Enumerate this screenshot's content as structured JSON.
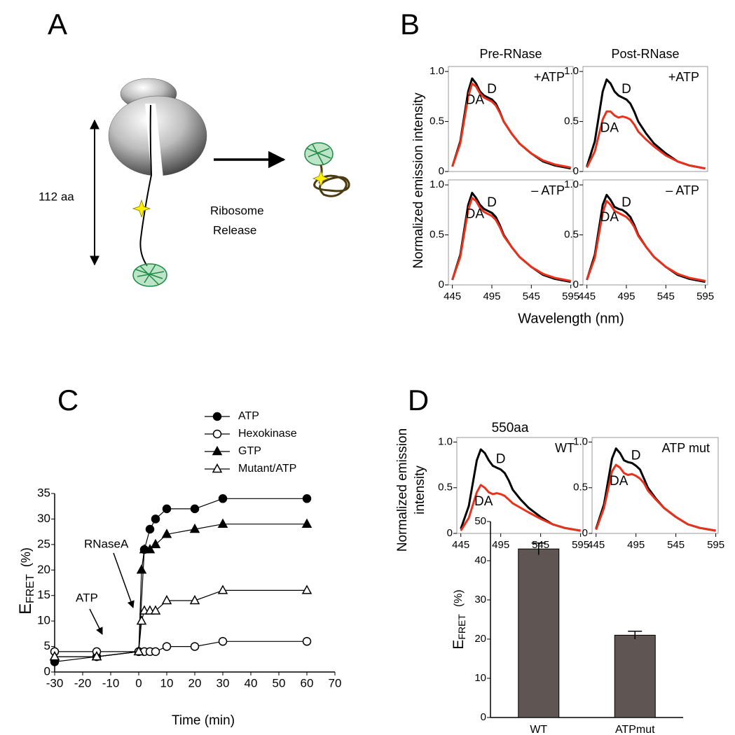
{
  "figure": {
    "panel_labels": [
      "A",
      "B",
      "C",
      "D"
    ],
    "b_y_label": "Normalized emission intensity",
    "b_x_label": "Wavelength (nm)",
    "d_title": "550aa",
    "d_y_label": [
      "Normalized emission",
      "intensity"
    ]
  },
  "diagram": {
    "length_label": "112 aa",
    "arrow_label": [
      "Ribosome",
      "Release"
    ]
  },
  "chart_data": [
    {
      "type": "line",
      "title": "Pre-RNase",
      "condition": "+ATP",
      "x": [
        445,
        455,
        465,
        470,
        475,
        480,
        485,
        490,
        495,
        500,
        505,
        510,
        520,
        530,
        545,
        560,
        575,
        595
      ],
      "series": [
        {
          "name": "D",
          "color": "#000000",
          "values": [
            0.05,
            0.3,
            0.8,
            0.93,
            0.88,
            0.8,
            0.76,
            0.74,
            0.72,
            0.68,
            0.6,
            0.5,
            0.38,
            0.28,
            0.18,
            0.1,
            0.06,
            0.03
          ]
        },
        {
          "name": "DA",
          "color": "#e8321c",
          "values": [
            0.05,
            0.28,
            0.75,
            0.88,
            0.85,
            0.78,
            0.74,
            0.72,
            0.7,
            0.66,
            0.59,
            0.5,
            0.38,
            0.28,
            0.18,
            0.11,
            0.07,
            0.04
          ]
        }
      ],
      "xlim": [
        440,
        598
      ],
      "ylim": [
        0,
        1.05
      ],
      "yticks": [
        0,
        0.5,
        {
          "value": 1,
          "label": "1.0"
        }
      ]
    },
    {
      "type": "line",
      "title": "Post-RNase",
      "condition": "+ATP",
      "x": [
        445,
        455,
        465,
        470,
        475,
        480,
        485,
        490,
        495,
        500,
        505,
        510,
        520,
        530,
        545,
        560,
        575,
        595
      ],
      "series": [
        {
          "name": "D",
          "color": "#000000",
          "values": [
            0.05,
            0.3,
            0.8,
            0.92,
            0.88,
            0.8,
            0.76,
            0.74,
            0.72,
            0.68,
            0.6,
            0.5,
            0.38,
            0.28,
            0.18,
            0.1,
            0.06,
            0.03
          ]
        },
        {
          "name": "DA",
          "color": "#e8321c",
          "values": [
            0.04,
            0.2,
            0.52,
            0.6,
            0.6,
            0.56,
            0.54,
            0.55,
            0.54,
            0.52,
            0.47,
            0.4,
            0.32,
            0.25,
            0.16,
            0.1,
            0.06,
            0.03
          ]
        }
      ],
      "xlim": [
        440,
        598
      ],
      "ylim": [
        0,
        1.05
      ],
      "yticks": [
        0,
        0.5,
        {
          "value": 1,
          "label": "1.0"
        }
      ]
    },
    {
      "type": "line",
      "condition": "– ATP",
      "x": [
        445,
        455,
        465,
        470,
        475,
        480,
        485,
        490,
        495,
        500,
        505,
        510,
        520,
        530,
        545,
        560,
        575,
        595
      ],
      "series": [
        {
          "name": "D",
          "color": "#000000",
          "values": [
            0.05,
            0.3,
            0.8,
            0.92,
            0.87,
            0.8,
            0.76,
            0.74,
            0.72,
            0.68,
            0.6,
            0.5,
            0.38,
            0.28,
            0.18,
            0.1,
            0.06,
            0.03
          ]
        },
        {
          "name": "DA",
          "color": "#e8321c",
          "values": [
            0.05,
            0.28,
            0.75,
            0.87,
            0.84,
            0.77,
            0.73,
            0.71,
            0.69,
            0.65,
            0.58,
            0.49,
            0.38,
            0.28,
            0.18,
            0.11,
            0.07,
            0.04
          ]
        }
      ],
      "xlim": [
        440,
        598
      ],
      "ylim": [
        0,
        1.05
      ],
      "xticks": [
        445,
        495,
        545,
        595
      ],
      "yticks": [
        0,
        0.5,
        {
          "value": 1,
          "label": "1.0"
        }
      ]
    },
    {
      "type": "line",
      "condition": "– ATP",
      "x": [
        445,
        455,
        465,
        470,
        475,
        480,
        485,
        490,
        495,
        500,
        505,
        510,
        520,
        530,
        545,
        560,
        575,
        595
      ],
      "series": [
        {
          "name": "D",
          "color": "#000000",
          "values": [
            0.05,
            0.3,
            0.8,
            0.9,
            0.85,
            0.78,
            0.76,
            0.75,
            0.72,
            0.68,
            0.6,
            0.5,
            0.38,
            0.28,
            0.18,
            0.1,
            0.06,
            0.03
          ]
        },
        {
          "name": "DA",
          "color": "#e8321c",
          "values": [
            0.05,
            0.27,
            0.72,
            0.84,
            0.8,
            0.74,
            0.72,
            0.7,
            0.68,
            0.64,
            0.58,
            0.49,
            0.38,
            0.28,
            0.18,
            0.11,
            0.07,
            0.04
          ]
        }
      ],
      "xlim": [
        440,
        598
      ],
      "ylim": [
        0,
        1.05
      ],
      "xticks": [
        445,
        495,
        545,
        595
      ],
      "yticks": [
        0,
        0.5,
        {
          "value": 1,
          "label": "1.0"
        }
      ]
    },
    {
      "type": "line",
      "x_label": "Time (min)",
      "y_label": "E",
      "y_label_sub": "FRET",
      "y_label_unit": "(%)",
      "annotations": [
        "RNaseA",
        "ATP"
      ],
      "series": [
        {
          "name": "ATP",
          "color": "#000000",
          "marker": "circle",
          "marker_fill": "filled",
          "x": [
            -30,
            -15,
            0,
            2,
            4,
            6,
            10,
            20,
            30,
            60
          ],
          "values": [
            2,
            3,
            4,
            24,
            28,
            30,
            32,
            32,
            34,
            34
          ]
        },
        {
          "name": "Hexokinase",
          "color": "#000000",
          "marker": "circle",
          "marker_fill": "open",
          "x": [
            -30,
            -15,
            0,
            2,
            4,
            6,
            10,
            20,
            30,
            60
          ],
          "values": [
            4,
            4,
            4,
            4,
            4,
            4,
            5,
            5,
            6,
            6
          ]
        },
        {
          "name": "GTP",
          "color": "#000000",
          "marker": "triangle",
          "marker_fill": "filled",
          "x": [
            -30,
            -15,
            0,
            1,
            2,
            4,
            6,
            10,
            20,
            30,
            60
          ],
          "values": [
            3,
            3,
            4,
            20,
            24,
            24,
            25,
            27,
            28,
            29,
            29
          ]
        },
        {
          "name": "Mutant/ATP",
          "color": "#000000",
          "marker": "triangle",
          "marker_fill": "open",
          "x": [
            -30,
            -15,
            0,
            1,
            2,
            4,
            6,
            10,
            20,
            30,
            60
          ],
          "values": [
            3,
            3,
            4,
            10,
            12,
            12,
            12,
            14,
            14,
            16,
            16
          ]
        }
      ],
      "xlim": [
        -30,
        70
      ],
      "xticks": [
        -30,
        -20,
        -10,
        0,
        10,
        20,
        30,
        40,
        50,
        60,
        70
      ],
      "ylim": [
        0,
        35
      ],
      "yticks": [
        0,
        5,
        10,
        15,
        20,
        25,
        30,
        35
      ]
    },
    {
      "type": "line",
      "condition": "WT",
      "x": [
        445,
        455,
        465,
        470,
        475,
        480,
        485,
        490,
        495,
        500,
        505,
        510,
        520,
        530,
        545,
        560,
        575,
        595
      ],
      "series": [
        {
          "name": "D",
          "color": "#000000",
          "values": [
            0.05,
            0.3,
            0.8,
            0.92,
            0.88,
            0.8,
            0.74,
            0.72,
            0.7,
            0.66,
            0.58,
            0.48,
            0.37,
            0.28,
            0.18,
            0.1,
            0.06,
            0.03
          ]
        },
        {
          "name": "DA",
          "color": "#e8321c",
          "values": [
            0.03,
            0.17,
            0.45,
            0.53,
            0.5,
            0.45,
            0.43,
            0.44,
            0.43,
            0.41,
            0.37,
            0.33,
            0.28,
            0.23,
            0.16,
            0.1,
            0.06,
            0.03
          ]
        }
      ],
      "xlim": [
        440,
        598
      ],
      "ylim": [
        0,
        1.05
      ],
      "xticks": [
        445,
        495,
        545,
        595
      ],
      "yticks": [
        0,
        0.5,
        {
          "value": 1,
          "label": "1.0"
        }
      ]
    },
    {
      "type": "line",
      "condition": "ATP mut",
      "x": [
        445,
        455,
        465,
        470,
        475,
        480,
        485,
        490,
        495,
        500,
        505,
        510,
        520,
        530,
        545,
        560,
        575,
        595
      ],
      "series": [
        {
          "name": "D",
          "color": "#000000",
          "values": [
            0.05,
            0.32,
            0.82,
            0.93,
            0.88,
            0.8,
            0.78,
            0.77,
            0.74,
            0.7,
            0.6,
            0.5,
            0.38,
            0.28,
            0.18,
            0.1,
            0.06,
            0.03
          ]
        },
        {
          "name": "DA",
          "color": "#e8321c",
          "values": [
            0.04,
            0.28,
            0.68,
            0.75,
            0.72,
            0.66,
            0.64,
            0.65,
            0.63,
            0.6,
            0.55,
            0.47,
            0.37,
            0.28,
            0.18,
            0.1,
            0.06,
            0.03
          ]
        }
      ],
      "xlim": [
        440,
        598
      ],
      "ylim": [
        0,
        1.05
      ],
      "xticks": [
        445,
        495,
        545,
        595
      ],
      "yticks": [
        0,
        0.5,
        {
          "value": 1,
          "label": "1.0"
        }
      ]
    },
    {
      "type": "bar",
      "y_label": "E",
      "y_label_sub": "FRET",
      "y_label_unit": "(%)",
      "categories": [
        "WT",
        "ATPmut"
      ],
      "values": [
        43,
        21
      ],
      "errors": [
        1.5,
        1
      ],
      "color": "#5f5552",
      "ylim": [
        0,
        50
      ],
      "yticks": [
        0,
        10,
        20,
        30,
        40,
        50
      ]
    }
  ]
}
